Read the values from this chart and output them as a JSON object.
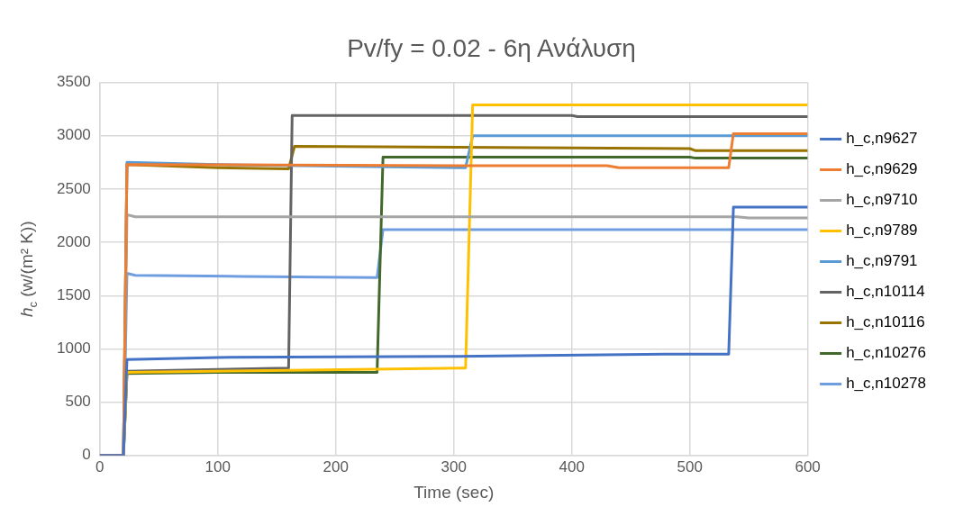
{
  "chart_data": {
    "type": "line",
    "title": "Pv/fy = 0.02 - 6η Ανάλυση",
    "xlabel": "Time (sec)",
    "ylabel": "h$_{c}$ (w/(m² K))",
    "xlim": [
      0,
      600
    ],
    "ylim": [
      0,
      3500
    ],
    "xticks": [
      0,
      100,
      200,
      300,
      400,
      500,
      600
    ],
    "yticks": [
      0,
      500,
      1000,
      1500,
      2000,
      2500,
      3000,
      3500
    ],
    "grid": true,
    "legend": "right",
    "marker": "none",
    "line_style": "solid",
    "series": [
      {
        "name": "h_c,n9627",
        "color": "#4472c4",
        "x": [
          0,
          20,
          23,
          100,
          300,
          480,
          533,
          537,
          600
        ],
        "values": [
          0,
          0,
          900,
          920,
          930,
          950,
          950,
          2330,
          2330
        ]
      },
      {
        "name": "h_c,n9629",
        "color": "#ed7d31",
        "x": [
          0,
          20,
          23,
          310,
          430,
          440,
          533,
          537,
          600
        ],
        "values": [
          0,
          0,
          2730,
          2720,
          2720,
          2700,
          2700,
          3020,
          3020
        ]
      },
      {
        "name": "h_c,n9710",
        "color": "#a5a5a5",
        "x": [
          0,
          20,
          23,
          30,
          540,
          550,
          600
        ],
        "values": [
          0,
          0,
          2260,
          2240,
          2240,
          2230,
          2230
        ]
      },
      {
        "name": "h_c,n9789",
        "color": "#ffc000",
        "x": [
          0,
          20,
          23,
          160,
          310,
          316,
          600
        ],
        "values": [
          0,
          0,
          780,
          800,
          820,
          3290,
          3290
        ]
      },
      {
        "name": "h_c,n9791",
        "color": "#5b9bd5",
        "x": [
          0,
          20,
          23,
          100,
          310,
          316,
          600
        ],
        "values": [
          0,
          0,
          2750,
          2730,
          2700,
          3000,
          3000
        ]
      },
      {
        "name": "h_c,n10114",
        "color": "#636363",
        "x": [
          0,
          20,
          23,
          160,
          163,
          400,
          405,
          600
        ],
        "values": [
          0,
          0,
          790,
          820,
          3190,
          3190,
          3180,
          3180
        ]
      },
      {
        "name": "h_c,n10116",
        "color": "#997300",
        "x": [
          0,
          20,
          23,
          100,
          160,
          165,
          500,
          505,
          600
        ],
        "values": [
          0,
          0,
          2730,
          2700,
          2690,
          2900,
          2880,
          2860,
          2860
        ]
      },
      {
        "name": "h_c,n10276",
        "color": "#43682b",
        "x": [
          0,
          20,
          23,
          100,
          235,
          240,
          500,
          505,
          600
        ],
        "values": [
          0,
          0,
          770,
          780,
          780,
          2800,
          2800,
          2790,
          2790
        ]
      },
      {
        "name": "h_c,n10278",
        "color": "#6f9ee0",
        "x": [
          0,
          20,
          23,
          30,
          120,
          235,
          240,
          600
        ],
        "values": [
          0,
          0,
          1710,
          1690,
          1680,
          1670,
          2120,
          2120
        ]
      }
    ]
  }
}
